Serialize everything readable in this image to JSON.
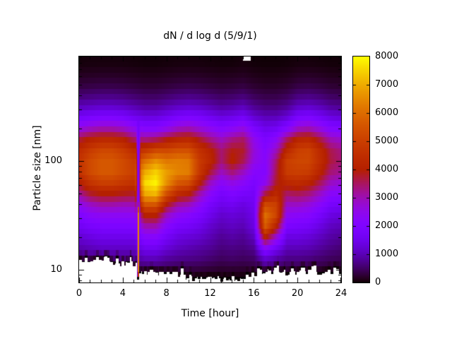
{
  "title": "dN / d log d (5/9/1)",
  "xlabel": "Time [hour]",
  "ylabel": "Particle size [nm]",
  "colors": {
    "background": "#ffffff",
    "text": "#000000",
    "axis": "#000000",
    "palette_stops": [
      "#000000",
      "#5a00b4",
      "#8004ff",
      "#9c0db4",
      "#b42000",
      "#ca3e00",
      "#dd6c00",
      "#efab00",
      "#ffff00"
    ]
  },
  "axes": {
    "x": {
      "min": 0,
      "max": 24,
      "major_ticks": [
        0,
        4,
        8,
        12,
        16,
        20,
        24
      ],
      "minor_step": 1,
      "tick_labels": [
        "0",
        "4",
        "8",
        "12",
        "16",
        "20",
        "24"
      ]
    },
    "y": {
      "scale": "log",
      "min_nm": 7.64,
      "max_nm": 914,
      "major_ticks": [
        10,
        100
      ],
      "tick_labels": [
        "10",
        "100"
      ],
      "minor_ticks": [
        8,
        9,
        20,
        30,
        40,
        50,
        60,
        70,
        80,
        90,
        200,
        300,
        400,
        500,
        600,
        700,
        800,
        900
      ]
    }
  },
  "colorbar": {
    "min": 0,
    "max": 8000,
    "tick_values": [
      0,
      1000,
      2000,
      3000,
      4000,
      5000,
      6000,
      7000,
      8000
    ],
    "tick_labels": [
      "0",
      "1000",
      "2000",
      "3000",
      "4000",
      "5000",
      "6000",
      "7000",
      "8000"
    ]
  },
  "chart_data": {
    "type": "heatmap",
    "title": "dN / d log d (5/9/1)",
    "xlabel": "Time [hour]",
    "ylabel": "Particle size [nm]",
    "x_hours": [
      0,
      1,
      2,
      3,
      4,
      5,
      6,
      7,
      8,
      9,
      10,
      11,
      12,
      13,
      14,
      15,
      16,
      17,
      18,
      19,
      20,
      21,
      22,
      23,
      24
    ],
    "y_sizes_nm": [
      794,
      631,
      501,
      398,
      316,
      251,
      200,
      158,
      126,
      100,
      79,
      63,
      50,
      40,
      32,
      25,
      20,
      16,
      13,
      10,
      8
    ],
    "value_range": [
      0,
      8000
    ],
    "values": [
      [
        50,
        60,
        60,
        60,
        60,
        50,
        40,
        40,
        50,
        60,
        60,
        60,
        50,
        40,
        40,
        60,
        40,
        30,
        30,
        40,
        60,
        60,
        50,
        40,
        40
      ],
      [
        150,
        160,
        170,
        170,
        160,
        140,
        120,
        120,
        140,
        160,
        170,
        160,
        140,
        120,
        130,
        150,
        110,
        90,
        90,
        110,
        160,
        170,
        150,
        120,
        110
      ],
      [
        300,
        320,
        340,
        340,
        320,
        280,
        240,
        240,
        280,
        320,
        340,
        320,
        280,
        240,
        260,
        300,
        220,
        180,
        180,
        220,
        320,
        340,
        300,
        240,
        220
      ],
      [
        600,
        640,
        680,
        680,
        640,
        560,
        480,
        480,
        560,
        640,
        680,
        640,
        560,
        480,
        520,
        600,
        440,
        360,
        360,
        440,
        640,
        680,
        600,
        480,
        440
      ],
      [
        1050,
        1120,
        1190,
        1190,
        1120,
        980,
        840,
        840,
        980,
        1120,
        1190,
        1120,
        980,
        840,
        910,
        1050,
        770,
        630,
        630,
        770,
        1120,
        1190,
        1050,
        840,
        770
      ],
      [
        1700,
        1850,
        1950,
        1950,
        1850,
        1600,
        1400,
        1400,
        1600,
        1850,
        1950,
        1850,
        1600,
        1400,
        1500,
        1700,
        1250,
        1050,
        1050,
        1300,
        1850,
        1950,
        1700,
        1400,
        1300
      ],
      [
        2600,
        2850,
        3000,
        3000,
        2850,
        2450,
        2100,
        2100,
        2450,
        2850,
        3000,
        2700,
        2400,
        2100,
        2300,
        2600,
        1900,
        1500,
        1600,
        2100,
        2850,
        3000,
        2600,
        2100,
        2000
      ],
      [
        3700,
        4100,
        4300,
        4300,
        4100,
        3500,
        3300,
        3500,
        3900,
        4200,
        4300,
        3800,
        3300,
        2900,
        3300,
        3500,
        2500,
        1900,
        2300,
        3500,
        4200,
        4300,
        3700,
        3000,
        2800
      ],
      [
        4400,
        4900,
        5200,
        5200,
        4900,
        4400,
        4700,
        5200,
        5200,
        5400,
        5400,
        4600,
        4100,
        3400,
        3900,
        3800,
        2700,
        2100,
        2900,
        4300,
        5000,
        5100,
        4400,
        3600,
        3300
      ],
      [
        4700,
        5300,
        5600,
        5600,
        5300,
        4900,
        6000,
        6600,
        6200,
        6300,
        6200,
        4900,
        4300,
        3400,
        4100,
        3600,
        2600,
        2200,
        3400,
        5000,
        5200,
        5200,
        4500,
        3700,
        3400
      ],
      [
        4600,
        5300,
        5600,
        5600,
        5300,
        5000,
        7000,
        7500,
        6800,
        6400,
        6300,
        4800,
        3700,
        2900,
        3400,
        2900,
        2200,
        2100,
        3600,
        4900,
        5000,
        4900,
        4200,
        3400,
        3200
      ],
      [
        4000,
        4700,
        5000,
        5000,
        4800,
        4600,
        7600,
        7900,
        6600,
        5600,
        5400,
        4100,
        2900,
        2300,
        2600,
        2300,
        1900,
        2400,
        3800,
        4300,
        4400,
        4200,
        3600,
        2900,
        2700
      ],
      [
        3200,
        3800,
        4000,
        4000,
        3900,
        3800,
        7000,
        7200,
        5400,
        4400,
        4100,
        3100,
        2300,
        1800,
        2000,
        1800,
        1700,
        3600,
        4300,
        3500,
        3600,
        3400,
        2900,
        2300,
        2200
      ],
      [
        2500,
        2900,
        3100,
        3100,
        3000,
        3000,
        5600,
        5600,
        4000,
        3200,
        3000,
        2400,
        1800,
        1500,
        1600,
        1400,
        1600,
        5200,
        5000,
        2900,
        2900,
        2700,
        2300,
        1800,
        1700
      ],
      [
        2000,
        2300,
        2400,
        2400,
        2400,
        2400,
        4100,
        4100,
        2900,
        2400,
        2200,
        1900,
        1500,
        1200,
        1300,
        1200,
        1500,
        6100,
        5200,
        2400,
        2300,
        2200,
        1800,
        1400,
        1300
      ],
      [
        1600,
        1800,
        1900,
        1900,
        1900,
        1900,
        3000,
        3000,
        2200,
        1800,
        1700,
        1500,
        1200,
        1000,
        1100,
        1000,
        1400,
        5700,
        4200,
        1900,
        1800,
        1700,
        1400,
        1100,
        1000
      ],
      [
        1250,
        1400,
        1500,
        1500,
        1500,
        1500,
        2200,
        2200,
        1700,
        1400,
        1300,
        1200,
        1000,
        800,
        900,
        800,
        1100,
        4200,
        2800,
        1400,
        1400,
        1300,
        1100,
        900,
        800
      ],
      [
        950,
        1050,
        1150,
        1150,
        1150,
        1150,
        1600,
        1600,
        1300,
        1100,
        1000,
        900,
        800,
        650,
        700,
        650,
        800,
        2400,
        1700,
        1050,
        1050,
        1000,
        850,
        700,
        600
      ],
      [
        650,
        750,
        800,
        800,
        800,
        800,
        1100,
        1100,
        900,
        800,
        750,
        700,
        600,
        500,
        550,
        500,
        550,
        1300,
        1000,
        750,
        750,
        700,
        600,
        500,
        450
      ],
      [
        250,
        300,
        320,
        320,
        320,
        320,
        450,
        450,
        380,
        340,
        320,
        300,
        260,
        220,
        240,
        220,
        260,
        500,
        400,
        320,
        320,
        300,
        260,
        220,
        200
      ],
      [
        40,
        50,
        60,
        60,
        60,
        60,
        90,
        90,
        80,
        70,
        60,
        60,
        50,
        40,
        50,
        40,
        50,
        100,
        80,
        60,
        60,
        60,
        50,
        40,
        40
      ]
    ],
    "events": {
      "nucleation_gap": {
        "hour": 5.4,
        "half_width_h": 0.25,
        "size_min_nm": 22,
        "size_max_nm": 260,
        "value": 1700
      },
      "nucleation_streak": {
        "hour": 5.38,
        "half_width_h": 0.09,
        "size_max_nm": 46,
        "size_full_nm": 34,
        "value": 6800
      }
    },
    "bottom_cutoff_nm_per_half_hour": [
      11.8,
      12.4,
      11.5,
      12.2,
      11.7,
      12.5,
      11.6,
      12.0,
      11.4,
      12.3,
      11.2,
      9.8,
      9.3,
      9.9,
      9.5,
      10.2,
      9.4,
      9.8,
      9.2,
      9.6,
      8.6,
      8.3,
      8.5,
      8.2,
      8.4,
      8.6,
      8.3,
      8.5,
      8.2,
      8.4,
      8.3,
      8.6,
      9.2,
      9.8,
      9.0,
      9.6,
      10.4,
      9.1,
      9.5,
      10.0,
      9.3,
      9.9,
      9.4,
      10.2,
      9.6,
      9.0,
      9.7,
      10.1,
      9.4
    ],
    "top_notch": {
      "hour_min": 15.0,
      "hour_max": 15.7,
      "size_above_nm": 840
    },
    "legend_position": "right-colorbar",
    "grid": false
  }
}
